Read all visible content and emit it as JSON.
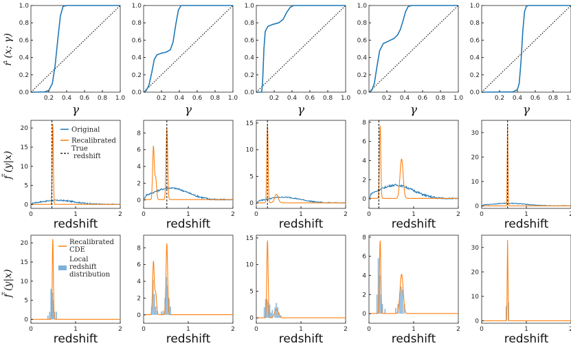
{
  "colors": {
    "original": "#1f77b4",
    "recalibrated": "#ff7f0e",
    "hist": "#7fb0d6",
    "true_line": "#000000",
    "diagonal": "#000000"
  },
  "chart_data": [
    {
      "type": "line",
      "row": "pit_cdf",
      "xlabel": "γ",
      "ylabel": "r̂ (x; γ)",
      "xlim": [
        0,
        1
      ],
      "ylim": [
        0,
        1
      ],
      "xticks": [
        "0.2",
        "0.4",
        "0.6",
        "0.8",
        "1.0"
      ],
      "yticks": [
        "0.0",
        "0.2",
        "0.4",
        "0.6",
        "0.8",
        "1.0"
      ],
      "series": [
        {
          "name": "panel-1",
          "x": [
            0,
            0.15,
            0.2,
            0.24,
            0.27,
            0.3,
            0.33,
            0.36,
            0.4,
            0.5,
            1.0
          ],
          "y": [
            0,
            0.002,
            0.02,
            0.1,
            0.3,
            0.6,
            0.88,
            0.99,
            1.0,
            1.0,
            1.0
          ]
        },
        {
          "name": "panel-2",
          "x": [
            0,
            0.03,
            0.06,
            0.09,
            0.12,
            0.15,
            0.2,
            0.25,
            0.3,
            0.33,
            0.36,
            0.39,
            0.42,
            0.5,
            1.0
          ],
          "y": [
            0,
            0.02,
            0.08,
            0.22,
            0.38,
            0.43,
            0.45,
            0.46,
            0.49,
            0.58,
            0.78,
            0.95,
            1.0,
            1.0,
            1.0
          ]
        },
        {
          "name": "panel-3",
          "x": [
            0,
            0.06,
            0.07,
            0.085,
            0.1,
            0.13,
            0.18,
            0.25,
            0.3,
            0.34,
            0.38,
            0.42,
            0.46,
            0.5,
            1.0
          ],
          "y": [
            0,
            0,
            0.1,
            0.5,
            0.7,
            0.76,
            0.78,
            0.8,
            0.84,
            0.92,
            0.98,
            1.0,
            1.0,
            1.0,
            1.0
          ]
        },
        {
          "name": "panel-4",
          "x": [
            0,
            0.03,
            0.06,
            0.09,
            0.12,
            0.16,
            0.22,
            0.28,
            0.32,
            0.35,
            0.38,
            0.41,
            0.44,
            0.48,
            0.55,
            1.0
          ],
          "y": [
            0,
            0.02,
            0.1,
            0.3,
            0.48,
            0.56,
            0.59,
            0.62,
            0.66,
            0.72,
            0.82,
            0.93,
            0.99,
            1.0,
            1.0,
            1.0
          ]
        },
        {
          "name": "panel-5",
          "x": [
            0,
            0.35,
            0.4,
            0.42,
            0.44,
            0.46,
            0.48,
            0.5,
            0.52,
            0.56,
            1.0
          ],
          "y": [
            0,
            0.003,
            0.03,
            0.1,
            0.35,
            0.7,
            0.93,
            0.99,
            1.0,
            1.0,
            1.0
          ]
        }
      ],
      "reference": {
        "name": "diagonal",
        "x": [
          0,
          1
        ],
        "y": [
          0,
          1
        ]
      }
    },
    {
      "type": "line",
      "row": "cde_original_vs_recalibrated",
      "xlabel": "redshift",
      "ylabel": "f̃ (y|x)",
      "xlim": [
        0,
        2
      ],
      "xticks": [
        "0",
        "1",
        "2"
      ],
      "legend": [
        "Original",
        "Recalibrated",
        "True\nredshift"
      ],
      "panels": [
        {
          "ymax": 22,
          "yticks": [
            0,
            5,
            10,
            15,
            20
          ],
          "true_z": 0.47,
          "recal_peaks": [
            {
              "mu": 0.49,
              "sigma": 0.012,
              "amp": 21
            }
          ]
        },
        {
          "ymax": 9.5,
          "yticks": [
            0,
            2,
            4,
            6,
            8
          ],
          "true_z": 0.52,
          "recal_peaks": [
            {
              "mu": 0.22,
              "sigma": 0.018,
              "amp": 6.3
            },
            {
              "mu": 0.27,
              "sigma": 0.02,
              "amp": 2.6
            },
            {
              "mu": 0.52,
              "sigma": 0.018,
              "amp": 8.5
            }
          ]
        },
        {
          "ymax": 15.5,
          "yticks": [
            0,
            5,
            10,
            15
          ],
          "true_z": 0.25,
          "recal_peaks": [
            {
              "mu": 0.25,
              "sigma": 0.015,
              "amp": 14.5
            },
            {
              "mu": 0.45,
              "sigma": 0.04,
              "amp": 1.6
            }
          ]
        },
        {
          "ymax": 8.2,
          "yticks": [
            0,
            2,
            4,
            6,
            8
          ],
          "true_z": 0.22,
          "recal_peaks": [
            {
              "mu": 0.25,
              "sigma": 0.015,
              "amp": 7.6
            },
            {
              "mu": 0.73,
              "sigma": 0.035,
              "amp": 4.1
            }
          ]
        },
        {
          "ymax": 35,
          "yticks": [
            0,
            10,
            20,
            30
          ],
          "true_z": 0.58,
          "recal_peaks": [
            {
              "mu": 0.58,
              "sigma": 0.008,
              "amp": 33
            }
          ]
        }
      ]
    },
    {
      "type": "line",
      "row": "cde_vs_local_distribution",
      "xlabel": "redshift",
      "ylabel": "f̃ (y|x)",
      "xlim": [
        0,
        2
      ],
      "xticks": [
        "0",
        "1",
        "2"
      ],
      "legend": [
        "Recalibrated\nCDE",
        "Local\nredshift\ndistribution"
      ],
      "panels": [
        {
          "ymax": 22,
          "yticks": [
            0,
            5,
            10,
            15,
            20
          ],
          "hist": [
            [
              0.38,
              1
            ],
            [
              0.42,
              2
            ],
            [
              0.45,
              8
            ],
            [
              0.48,
              7
            ],
            [
              0.5,
              5
            ],
            [
              0.53,
              2
            ],
            [
              0.57,
              2
            ]
          ]
        },
        {
          "ymax": 9.5,
          "yticks": [
            0,
            2,
            4,
            6,
            8
          ],
          "hist": [
            [
              0.18,
              1
            ],
            [
              0.21,
              4.2
            ],
            [
              0.24,
              2.5
            ],
            [
              0.27,
              1
            ],
            [
              0.3,
              0.5
            ],
            [
              0.4,
              0.4
            ],
            [
              0.44,
              0.5
            ],
            [
              0.48,
              2
            ],
            [
              0.51,
              4.5
            ],
            [
              0.54,
              3.5
            ],
            [
              0.57,
              2
            ],
            [
              0.6,
              1
            ]
          ]
        },
        {
          "ymax": 15.5,
          "yticks": [
            0,
            5,
            10,
            15
          ],
          "hist": [
            [
              0.18,
              2
            ],
            [
              0.21,
              3.5
            ],
            [
              0.24,
              3.5
            ],
            [
              0.27,
              3
            ],
            [
              0.3,
              2.5
            ],
            [
              0.33,
              1
            ],
            [
              0.36,
              1.5
            ],
            [
              0.42,
              2
            ],
            [
              0.45,
              2.8
            ],
            [
              0.48,
              2
            ],
            [
              0.51,
              1
            ],
            [
              0.55,
              0.5
            ]
          ]
        },
        {
          "ymax": 8.2,
          "yticks": [
            0,
            2,
            4,
            6,
            8
          ],
          "hist": [
            [
              0.18,
              2
            ],
            [
              0.21,
              5.8
            ],
            [
              0.24,
              4
            ],
            [
              0.27,
              2
            ],
            [
              0.3,
              1
            ],
            [
              0.36,
              0.5
            ],
            [
              0.6,
              0.6
            ],
            [
              0.65,
              1
            ],
            [
              0.69,
              2.2
            ],
            [
              0.72,
              2.8
            ],
            [
              0.75,
              2.5
            ],
            [
              0.79,
              1
            ]
          ]
        },
        {
          "ymax": 35,
          "yticks": [
            0,
            10,
            20,
            30
          ],
          "hist": [
            [
              0.55,
              6
            ],
            [
              0.6,
              7.5
            ]
          ]
        }
      ]
    }
  ]
}
